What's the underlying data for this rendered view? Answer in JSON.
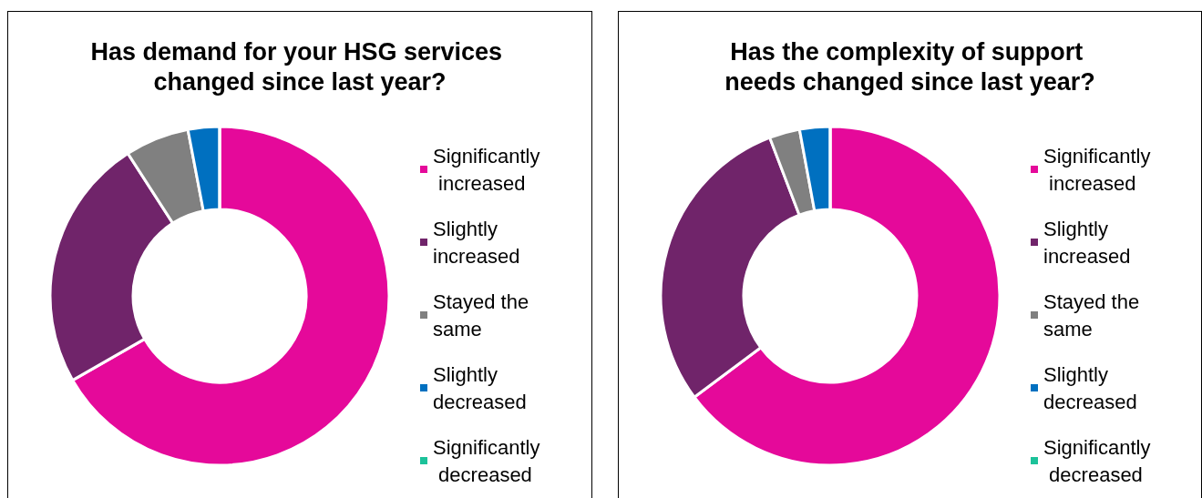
{
  "chart_data": [
    {
      "type": "donut",
      "title": "Has demand for your HSG services changed since last year?",
      "categories": [
        "Significantly increased",
        "Slightly increased",
        "Stayed the same",
        "Slightly decreased",
        "Significantly decreased"
      ],
      "values": [
        66.7,
        24.2,
        6.1,
        3.0,
        0
      ],
      "colors": [
        "#e5099a",
        "#70246a",
        "#808080",
        "#0070c0",
        "#1cc29a"
      ],
      "legend": "right"
    },
    {
      "type": "donut",
      "title": "Has the complexity of support needs changed since last year?",
      "categories": [
        "Significantly increased",
        "Slightly increased",
        "Stayed the same",
        "Slightly decreased",
        "Significantly decreased"
      ],
      "values": [
        64.8,
        29.4,
        2.9,
        2.9,
        0
      ],
      "colors": [
        "#e5099a",
        "#70246a",
        "#808080",
        "#0070c0",
        "#1cc29a"
      ],
      "legend": "right"
    }
  ]
}
